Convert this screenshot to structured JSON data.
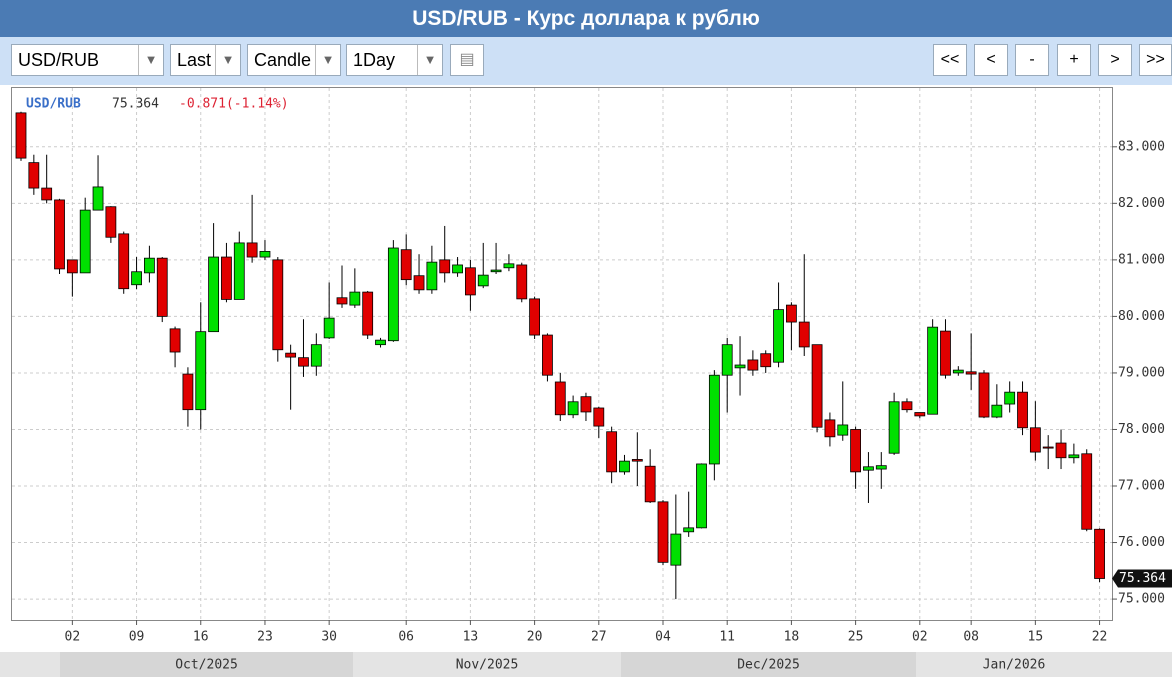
{
  "header": {
    "title": "USD/RUB - Курс доллара к рублю"
  },
  "toolbar": {
    "symbol": "USD/RUB",
    "field": "Last",
    "style": "Candle",
    "period": "1Day",
    "nav": [
      "<<",
      "<",
      "-",
      "+",
      ">",
      ">>"
    ]
  },
  "chart_data": {
    "type": "candlestick",
    "symbol": "USD/RUB",
    "change_label": "-0.871(-1.14%)",
    "up_color": "#00e000",
    "down_color": "#e00000",
    "grid": true,
    "categories": [
      null,
      null,
      null,
      null,
      "02",
      null,
      null,
      null,
      null,
      "09",
      null,
      null,
      null,
      null,
      "16",
      null,
      null,
      null,
      null,
      "23",
      null,
      null,
      null,
      null,
      "30",
      null,
      null,
      null,
      null,
      null,
      "06",
      null,
      null,
      null,
      null,
      "13",
      null,
      null,
      null,
      null,
      "20",
      null,
      null,
      null,
      null,
      "27",
      null,
      null,
      null,
      null,
      "04",
      null,
      null,
      null,
      null,
      "11",
      null,
      null,
      null,
      null,
      "18",
      null,
      null,
      null,
      null,
      "25",
      null,
      null,
      null,
      null,
      "02",
      null,
      null,
      null,
      "08",
      null,
      null,
      null,
      null,
      "15",
      null,
      null,
      null,
      null,
      "22"
    ],
    "months": [
      "Oct/2025",
      "Nov/2025",
      "Dec/2025",
      "Jan/2026"
    ],
    "open": [
      83.6,
      82.72,
      82.27,
      82.06,
      81.0,
      80.77,
      81.88,
      81.94,
      81.46,
      80.56,
      80.77,
      81.03,
      79.78,
      78.98,
      78.35,
      79.73,
      81.05,
      80.3,
      81.3,
      81.05,
      81.0,
      79.35,
      79.27,
      79.12,
      79.62,
      80.33,
      80.2,
      80.43,
      79.5,
      79.57,
      81.18,
      80.72,
      80.47,
      81.0,
      80.77,
      80.86,
      80.54,
      80.79,
      80.86,
      80.91,
      80.31,
      79.67,
      78.84,
      78.26,
      78.58,
      78.38,
      77.96,
      77.25,
      77.47,
      77.35,
      76.72,
      75.6,
      76.19,
      76.26,
      77.39,
      78.96,
      79.09,
      79.23,
      79.34,
      79.19,
      80.2,
      79.9,
      79.5,
      78.17,
      77.9,
      78.0,
      77.28,
      77.3,
      77.58,
      78.49,
      78.3,
      78.27,
      79.74,
      79.0,
      79.02,
      79.0,
      78.22,
      78.45,
      78.66,
      78.03,
      77.69,
      77.76,
      77.5,
      77.57,
      76.235
    ],
    "high": [
      83.62,
      82.86,
      82.86,
      82.08,
      81.0,
      82.1,
      82.85,
      81.95,
      81.5,
      81.05,
      81.25,
      81.05,
      79.82,
      79.1,
      80.25,
      81.65,
      81.3,
      81.5,
      82.15,
      81.35,
      81.05,
      79.5,
      79.95,
      79.7,
      80.6,
      80.9,
      80.85,
      80.45,
      79.62,
      81.35,
      81.45,
      81.1,
      81.25,
      81.6,
      81.05,
      81.0,
      81.3,
      81.3,
      81.1,
      80.95,
      80.35,
      79.7,
      79.0,
      78.6,
      78.65,
      78.4,
      78.05,
      77.55,
      77.95,
      77.65,
      76.75,
      76.85,
      76.9,
      77.4,
      79.05,
      79.62,
      79.65,
      79.4,
      79.4,
      80.6,
      80.25,
      81.1,
      79.5,
      78.3,
      78.85,
      78.05,
      77.6,
      77.6,
      78.65,
      78.55,
      78.3,
      79.95,
      79.95,
      79.12,
      79.7,
      79.05,
      78.8,
      78.85,
      78.85,
      78.5,
      77.9,
      78.0,
      77.75,
      77.65,
      76.25
    ],
    "low": [
      82.75,
      82.15,
      82.0,
      80.75,
      80.35,
      80.77,
      81.88,
      81.3,
      80.4,
      80.48,
      80.6,
      79.9,
      79.1,
      78.05,
      78.0,
      79.73,
      80.25,
      80.3,
      80.95,
      81.0,
      79.2,
      78.35,
      78.93,
      78.95,
      79.6,
      80.15,
      80.15,
      79.6,
      79.45,
      79.55,
      80.55,
      80.4,
      80.4,
      80.6,
      80.7,
      80.1,
      80.5,
      80.75,
      80.8,
      80.25,
      79.6,
      78.85,
      78.15,
      78.2,
      78.15,
      77.85,
      77.05,
      77.2,
      77.0,
      76.7,
      75.6,
      75.0,
      76.1,
      76.25,
      77.1,
      78.3,
      78.6,
      78.95,
      79.0,
      79.1,
      79.4,
      79.3,
      77.95,
      77.7,
      77.8,
      76.95,
      76.7,
      76.95,
      77.55,
      78.3,
      78.2,
      78.27,
      78.9,
      78.95,
      78.7,
      78.2,
      78.2,
      78.3,
      77.9,
      77.45,
      77.3,
      77.3,
      77.4,
      76.2,
      75.3
    ],
    "close": [
      82.8,
      82.27,
      82.06,
      80.84,
      80.77,
      81.88,
      82.29,
      81.4,
      80.49,
      80.79,
      81.03,
      80.0,
      79.37,
      78.35,
      79.73,
      81.05,
      80.3,
      81.3,
      81.05,
      81.15,
      79.41,
      79.28,
      79.12,
      79.5,
      79.97,
      80.22,
      80.43,
      79.67,
      79.58,
      81.21,
      80.65,
      80.47,
      80.96,
      80.77,
      80.91,
      80.38,
      80.73,
      80.82,
      80.93,
      80.31,
      79.67,
      78.96,
      78.26,
      78.49,
      78.31,
      78.06,
      77.25,
      77.44,
      77.44,
      76.72,
      75.65,
      76.15,
      76.26,
      77.39,
      78.96,
      79.5,
      79.14,
      79.05,
      79.11,
      80.12,
      79.9,
      79.46,
      78.04,
      77.87,
      78.08,
      77.25,
      77.34,
      77.36,
      78.49,
      78.35,
      78.24,
      79.81,
      78.96,
      79.05,
      78.98,
      78.22,
      78.43,
      78.66,
      78.03,
      77.6,
      77.67,
      77.5,
      77.55,
      76.235,
      75.364
    ],
    "ylim": [
      74.63,
      84.04
    ],
    "yticks": [
      {
        "value": 75,
        "label": "75.000"
      },
      {
        "value": 76,
        "label": "76.000"
      },
      {
        "value": 77,
        "label": "77.000"
      },
      {
        "value": 78,
        "label": "78.000"
      },
      {
        "value": 79,
        "label": "79.000"
      },
      {
        "value": 80,
        "label": "80.000"
      },
      {
        "value": 81,
        "label": "81.000"
      },
      {
        "value": 82,
        "label": "82.000"
      },
      {
        "value": 83,
        "label": "83.000"
      }
    ]
  }
}
